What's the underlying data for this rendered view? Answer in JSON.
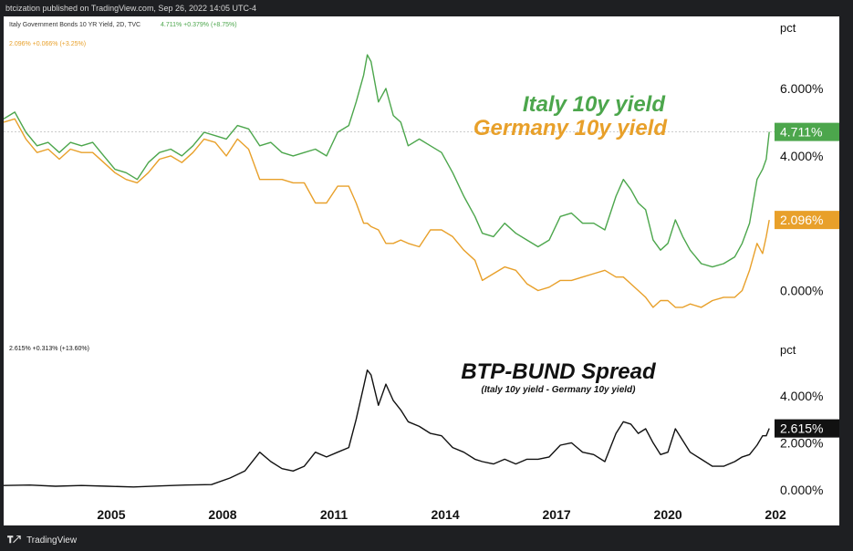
{
  "header": {
    "published": "btcization published on TradingView.com, Sep 26, 2022 14:05 UTC-4"
  },
  "footer": {
    "brand": "TradingView",
    "logo_icon": "tradingview-logo-icon"
  },
  "colors": {
    "italy": "#4ca64c",
    "germany": "#e8a02a",
    "spread": "#111111",
    "text": "#111111"
  },
  "chart_data": [
    {
      "type": "line",
      "legend_line_1": "Italy Government Bonds 10 YR Yield, 2D, TVC",
      "legend_line_1_values": "4.711%  +0.379% (+8.75%)",
      "legend_line_2": "2.096%  +0.066% (+3.25%)",
      "annotation_italy": "Italy 10y yield",
      "annotation_germany": "Germany 10y yield",
      "unit": "pct",
      "y_ticks": [
        "6.000%",
        "4.000%",
        "0.000%"
      ],
      "y_tick_values": [
        6,
        4,
        0
      ],
      "last_labels": {
        "italy": "4.711%",
        "germany": "2.096%"
      },
      "ylim": [
        -0.8,
        7.6
      ],
      "xlim": [
        2002.1,
        2022.75
      ],
      "series": [
        {
          "key": "italy",
          "x": [
            2002.1,
            2002.4,
            2002.7,
            2003.0,
            2003.3,
            2003.6,
            2003.9,
            2004.2,
            2004.5,
            2004.8,
            2005.1,
            2005.4,
            2005.7,
            2006.0,
            2006.3,
            2006.6,
            2006.9,
            2007.2,
            2007.5,
            2007.8,
            2008.1,
            2008.4,
            2008.7,
            2009.0,
            2009.3,
            2009.6,
            2009.9,
            2010.2,
            2010.5,
            2010.8,
            2011.1,
            2011.4,
            2011.6,
            2011.8,
            2011.9,
            2012.0,
            2012.2,
            2012.4,
            2012.6,
            2012.8,
            2013.0,
            2013.3,
            2013.6,
            2013.9,
            2014.2,
            2014.5,
            2014.8,
            2015.0,
            2015.3,
            2015.6,
            2015.9,
            2016.2,
            2016.5,
            2016.8,
            2017.1,
            2017.4,
            2017.7,
            2018.0,
            2018.3,
            2018.6,
            2018.8,
            2019.0,
            2019.2,
            2019.4,
            2019.6,
            2019.8,
            2020.0,
            2020.2,
            2020.4,
            2020.6,
            2020.9,
            2021.2,
            2021.5,
            2021.8,
            2022.0,
            2022.2,
            2022.4,
            2022.55,
            2022.65,
            2022.73
          ],
          "y": [
            5.1,
            5.3,
            4.7,
            4.3,
            4.4,
            4.1,
            4.4,
            4.3,
            4.4,
            4.0,
            3.6,
            3.5,
            3.3,
            3.8,
            4.1,
            4.2,
            4.0,
            4.3,
            4.7,
            4.6,
            4.5,
            4.9,
            4.8,
            4.3,
            4.4,
            4.1,
            4.0,
            4.1,
            4.2,
            4.0,
            4.7,
            4.9,
            5.6,
            6.4,
            7.0,
            6.8,
            5.6,
            6.0,
            5.2,
            5.0,
            4.3,
            4.5,
            4.3,
            4.1,
            3.5,
            2.8,
            2.2,
            1.7,
            1.6,
            2.0,
            1.7,
            1.5,
            1.3,
            1.5,
            2.2,
            2.3,
            2.0,
            2.0,
            1.8,
            2.8,
            3.3,
            3.0,
            2.6,
            2.4,
            1.5,
            1.2,
            1.4,
            2.1,
            1.6,
            1.2,
            0.8,
            0.7,
            0.8,
            1.0,
            1.4,
            2.0,
            3.3,
            3.6,
            3.9,
            4.711
          ]
        },
        {
          "key": "germany",
          "x": [
            2002.1,
            2002.4,
            2002.7,
            2003.0,
            2003.3,
            2003.6,
            2003.9,
            2004.2,
            2004.5,
            2004.8,
            2005.1,
            2005.4,
            2005.7,
            2006.0,
            2006.3,
            2006.6,
            2006.9,
            2007.2,
            2007.5,
            2007.8,
            2008.1,
            2008.4,
            2008.7,
            2009.0,
            2009.3,
            2009.6,
            2009.9,
            2010.2,
            2010.5,
            2010.8,
            2011.1,
            2011.4,
            2011.6,
            2011.8,
            2011.9,
            2012.0,
            2012.2,
            2012.4,
            2012.6,
            2012.8,
            2013.0,
            2013.3,
            2013.6,
            2013.9,
            2014.2,
            2014.5,
            2014.8,
            2015.0,
            2015.3,
            2015.6,
            2015.9,
            2016.2,
            2016.5,
            2016.8,
            2017.1,
            2017.4,
            2017.7,
            2018.0,
            2018.3,
            2018.6,
            2018.8,
            2019.0,
            2019.2,
            2019.4,
            2019.6,
            2019.8,
            2020.0,
            2020.2,
            2020.4,
            2020.6,
            2020.9,
            2021.2,
            2021.5,
            2021.8,
            2022.0,
            2022.2,
            2022.4,
            2022.55,
            2022.65,
            2022.73
          ],
          "y": [
            5.0,
            5.1,
            4.5,
            4.1,
            4.2,
            3.9,
            4.2,
            4.1,
            4.1,
            3.8,
            3.5,
            3.3,
            3.2,
            3.5,
            3.9,
            4.0,
            3.8,
            4.1,
            4.5,
            4.4,
            4.0,
            4.5,
            4.2,
            3.3,
            3.3,
            3.3,
            3.2,
            3.2,
            2.6,
            2.6,
            3.1,
            3.1,
            2.6,
            2.0,
            2.0,
            1.9,
            1.8,
            1.4,
            1.4,
            1.5,
            1.4,
            1.3,
            1.8,
            1.8,
            1.6,
            1.2,
            0.9,
            0.3,
            0.5,
            0.7,
            0.6,
            0.2,
            0.0,
            0.1,
            0.3,
            0.3,
            0.4,
            0.5,
            0.6,
            0.4,
            0.4,
            0.2,
            0.0,
            -0.2,
            -0.5,
            -0.3,
            -0.3,
            -0.5,
            -0.5,
            -0.4,
            -0.5,
            -0.3,
            -0.2,
            -0.2,
            0.0,
            0.6,
            1.4,
            1.1,
            1.6,
            2.096
          ]
        }
      ]
    },
    {
      "type": "line",
      "legend_line": "2.615%  +0.313% (+13.60%)",
      "title": "BTP-BUND Spread",
      "subtitle": "(Italy 10y yield - Germany 10y yield)",
      "unit": "pct",
      "y_ticks": [
        "4.000%",
        "2.000%",
        "0.000%"
      ],
      "y_tick_values": [
        4,
        2,
        0
      ],
      "last_label": "2.615%",
      "ylim": [
        -0.2,
        5.4
      ],
      "xlim": [
        2002.1,
        2022.75
      ],
      "x_ticks": [
        "2005",
        "2008",
        "2011",
        "2014",
        "2017",
        "2020",
        "202"
      ],
      "x_tick_values": [
        2005,
        2008,
        2011,
        2014,
        2017,
        2020,
        2022.9
      ],
      "series": [
        {
          "key": "spread",
          "x": [
            2002.1,
            2002.8,
            2003.5,
            2004.2,
            2004.9,
            2005.6,
            2006.3,
            2007.0,
            2007.7,
            2008.2,
            2008.6,
            2009.0,
            2009.3,
            2009.6,
            2009.9,
            2010.2,
            2010.5,
            2010.8,
            2011.1,
            2011.4,
            2011.6,
            2011.8,
            2011.9,
            2012.0,
            2012.2,
            2012.4,
            2012.6,
            2012.8,
            2013.0,
            2013.3,
            2013.6,
            2013.9,
            2014.2,
            2014.5,
            2014.8,
            2015.0,
            2015.3,
            2015.6,
            2015.9,
            2016.2,
            2016.5,
            2016.8,
            2017.1,
            2017.4,
            2017.7,
            2018.0,
            2018.3,
            2018.6,
            2018.8,
            2019.0,
            2019.2,
            2019.4,
            2019.6,
            2019.8,
            2020.0,
            2020.2,
            2020.4,
            2020.6,
            2020.9,
            2021.2,
            2021.5,
            2021.8,
            2022.0,
            2022.2,
            2022.4,
            2022.55,
            2022.65,
            2022.73
          ],
          "y": [
            0.18,
            0.2,
            0.15,
            0.18,
            0.15,
            0.12,
            0.16,
            0.2,
            0.22,
            0.5,
            0.8,
            1.6,
            1.2,
            0.9,
            0.8,
            1.0,
            1.6,
            1.4,
            1.6,
            1.8,
            3.0,
            4.4,
            5.1,
            4.9,
            3.6,
            4.5,
            3.8,
            3.4,
            2.9,
            2.7,
            2.4,
            2.3,
            1.8,
            1.6,
            1.3,
            1.2,
            1.1,
            1.3,
            1.1,
            1.3,
            1.3,
            1.4,
            1.9,
            2.0,
            1.6,
            1.5,
            1.2,
            2.4,
            2.9,
            2.8,
            2.4,
            2.6,
            2.0,
            1.5,
            1.6,
            2.6,
            2.1,
            1.6,
            1.3,
            1.0,
            1.0,
            1.2,
            1.4,
            1.5,
            1.9,
            2.3,
            2.3,
            2.615
          ]
        }
      ]
    }
  ]
}
